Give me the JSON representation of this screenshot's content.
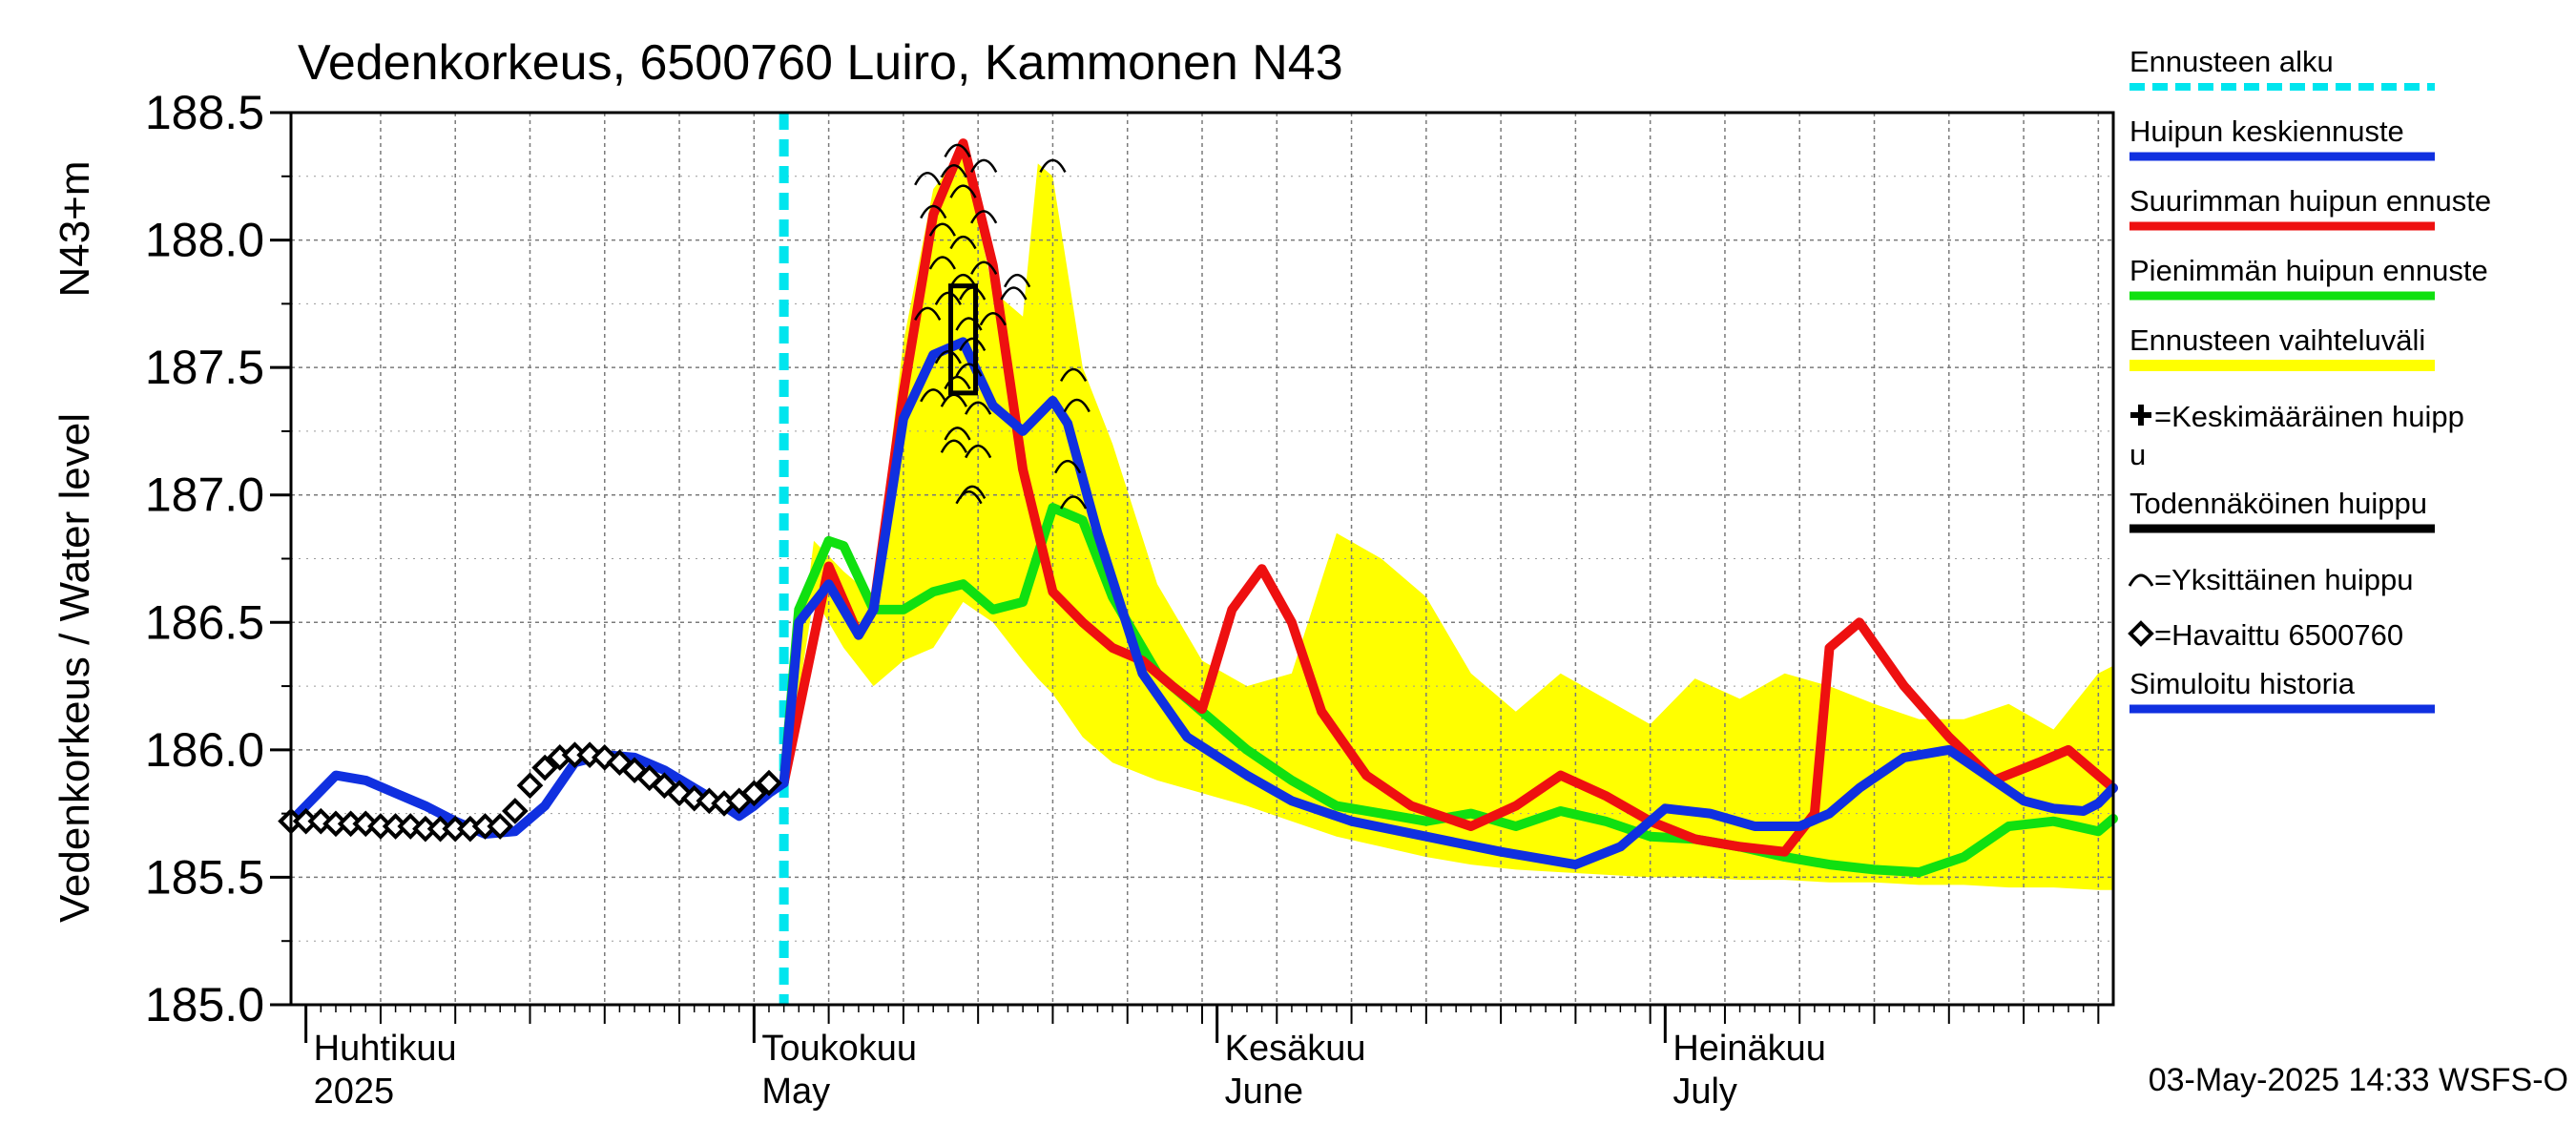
{
  "chart_data": {
    "type": "line",
    "title": "Vedenkorkeus, 6500760 Luiro, Kammonen N43",
    "ylabel": "Vedenkorkeus / Water level",
    "ylabel_unit": "N43+m",
    "ylim": [
      185.0,
      188.5
    ],
    "yticks": [
      "185.0",
      "185.5",
      "186.0",
      "186.5",
      "187.0",
      "187.5",
      "188.0",
      "188.5"
    ],
    "xlim": [
      "2025-03-31",
      "2025-07-31"
    ],
    "grid": true,
    "legend_position": "right",
    "months": [
      {
        "date": "2025-04-01",
        "fi": "Huhtikuu",
        "en": "2025"
      },
      {
        "date": "2025-05-01",
        "fi": "Toukokuu",
        "en": "May"
      },
      {
        "date": "2025-06-01",
        "fi": "Kesäkuu",
        "en": "June"
      },
      {
        "date": "2025-07-01",
        "fi": "Heinäkuu",
        "en": "July"
      }
    ],
    "forecast_start": "2025-05-03",
    "footer": "03-May-2025 14:33 WSFS-O",
    "legend": [
      {
        "key": "forecast_start",
        "label": "Ennusteen alku",
        "color": "#00e5ee",
        "style": "dashed"
      },
      {
        "key": "mean",
        "label": "Huipun keskiennuste",
        "color": "#1030e0",
        "style": "line"
      },
      {
        "key": "max",
        "label": "Suurimman huipun ennuste",
        "color": "#ee1010",
        "style": "line"
      },
      {
        "key": "min",
        "label": "Pienimmän huipun ennuste",
        "color": "#10e010",
        "style": "line"
      },
      {
        "key": "range",
        "label": "Ennusteen vaihteluväli",
        "color": "#ffff00",
        "style": "band"
      },
      {
        "key": "mean_peak",
        "label": "=Keskimääräinen huipp",
        "label2": "u",
        "color": "#000000",
        "style": "plus"
      },
      {
        "key": "likely_peak",
        "label": "Todennäköinen huippu",
        "color": "#000000",
        "style": "line"
      },
      {
        "key": "single_peak",
        "label": "=Yksittäinen huippu",
        "color": "#000000",
        "style": "arc"
      },
      {
        "key": "observed",
        "label": "=Havaittu 6500760",
        "color": "#000000",
        "style": "diamond"
      },
      {
        "key": "simulated",
        "label": "Simuloitu historia",
        "color": "#1030e0",
        "style": "line"
      }
    ],
    "series": [
      {
        "name": "Ennusteen vaihteluväli",
        "type": "band",
        "x": [
          "2025-05-03",
          "2025-05-05",
          "2025-05-07",
          "2025-05-09",
          "2025-05-11",
          "2025-05-13",
          "2025-05-15",
          "2025-05-17",
          "2025-05-19",
          "2025-05-20",
          "2025-05-21",
          "2025-05-23",
          "2025-05-25",
          "2025-05-28",
          "2025-05-31",
          "2025-06-03",
          "2025-06-06",
          "2025-06-09",
          "2025-06-12",
          "2025-06-15",
          "2025-06-18",
          "2025-06-21",
          "2025-06-24",
          "2025-06-27",
          "2025-06-30",
          "2025-07-03",
          "2025-07-06",
          "2025-07-09",
          "2025-07-12",
          "2025-07-15",
          "2025-07-18",
          "2025-07-21",
          "2025-07-24",
          "2025-07-27",
          "2025-07-30",
          "2025-07-31"
        ],
        "upper": [
          185.87,
          186.82,
          186.7,
          186.6,
          187.6,
          188.2,
          188.35,
          187.8,
          187.7,
          188.3,
          188.25,
          187.5,
          187.2,
          186.65,
          186.35,
          186.25,
          186.3,
          186.85,
          186.75,
          186.6,
          186.3,
          186.15,
          186.3,
          186.2,
          186.1,
          186.28,
          186.2,
          186.3,
          186.25,
          186.18,
          186.12,
          186.12,
          186.18,
          186.08,
          186.3,
          186.33
        ],
        "lower": [
          185.85,
          186.6,
          186.4,
          186.25,
          186.35,
          186.4,
          186.58,
          186.5,
          186.35,
          186.28,
          186.22,
          186.05,
          185.95,
          185.88,
          185.83,
          185.78,
          185.72,
          185.66,
          185.62,
          185.58,
          185.55,
          185.53,
          185.52,
          185.51,
          185.5,
          185.5,
          185.49,
          185.49,
          185.48,
          185.48,
          185.47,
          185.47,
          185.46,
          185.46,
          185.45,
          185.45
        ]
      },
      {
        "name": "Huipun keskiennuste",
        "type": "line",
        "color": "#1030e0",
        "x": [
          "2025-05-03",
          "2025-05-04",
          "2025-05-06",
          "2025-05-08",
          "2025-05-09",
          "2025-05-11",
          "2025-05-13",
          "2025-05-15",
          "2025-05-17",
          "2025-05-19",
          "2025-05-21",
          "2025-05-22",
          "2025-05-24",
          "2025-05-27",
          "2025-05-30",
          "2025-06-03",
          "2025-06-06",
          "2025-06-10",
          "2025-06-15",
          "2025-06-20",
          "2025-06-25",
          "2025-06-28",
          "2025-07-01",
          "2025-07-04",
          "2025-07-07",
          "2025-07-10",
          "2025-07-12",
          "2025-07-14",
          "2025-07-17",
          "2025-07-20",
          "2025-07-23",
          "2025-07-25",
          "2025-07-27",
          "2025-07-29",
          "2025-07-30",
          "2025-07-31"
        ],
        "y": [
          185.87,
          186.5,
          186.65,
          186.45,
          186.55,
          187.3,
          187.55,
          187.6,
          187.35,
          187.25,
          187.37,
          187.28,
          186.85,
          186.3,
          186.05,
          185.9,
          185.8,
          185.72,
          185.66,
          185.6,
          185.55,
          185.62,
          185.77,
          185.75,
          185.7,
          185.7,
          185.75,
          185.85,
          185.97,
          186.0,
          185.88,
          185.8,
          185.77,
          185.76,
          185.79,
          185.85
        ]
      },
      {
        "name": "Suurimman huipun ennuste",
        "type": "line",
        "color": "#ee1010",
        "x": [
          "2025-05-03",
          "2025-05-06",
          "2025-05-08",
          "2025-05-09",
          "2025-05-11",
          "2025-05-13",
          "2025-05-15",
          "2025-05-17",
          "2025-05-19",
          "2025-05-21",
          "2025-05-23",
          "2025-05-25",
          "2025-05-27",
          "2025-05-29",
          "2025-05-31",
          "2025-06-02",
          "2025-06-04",
          "2025-06-06",
          "2025-06-08",
          "2025-06-11",
          "2025-06-14",
          "2025-06-18",
          "2025-06-21",
          "2025-06-24",
          "2025-06-27",
          "2025-06-30",
          "2025-07-03",
          "2025-07-06",
          "2025-07-09",
          "2025-07-11",
          "2025-07-12",
          "2025-07-14",
          "2025-07-17",
          "2025-07-20",
          "2025-07-23",
          "2025-07-26",
          "2025-07-28",
          "2025-07-31"
        ],
        "y": [
          185.87,
          186.72,
          186.45,
          186.55,
          187.4,
          188.1,
          188.38,
          187.9,
          187.1,
          186.62,
          186.5,
          186.4,
          186.35,
          186.25,
          186.16,
          186.55,
          186.71,
          186.5,
          186.15,
          185.9,
          185.78,
          185.7,
          185.78,
          185.9,
          185.82,
          185.72,
          185.65,
          185.62,
          185.6,
          185.75,
          186.4,
          186.5,
          186.25,
          186.05,
          185.88,
          185.95,
          186.0,
          185.85
        ]
      },
      {
        "name": "Pienimmän huipun ennuste",
        "type": "line",
        "color": "#10e010",
        "x": [
          "2025-05-03",
          "2025-05-04",
          "2025-05-06",
          "2025-05-07",
          "2025-05-09",
          "2025-05-11",
          "2025-05-13",
          "2025-05-15",
          "2025-05-17",
          "2025-05-19",
          "2025-05-21",
          "2025-05-23",
          "2025-05-25",
          "2025-05-28",
          "2025-05-31",
          "2025-06-03",
          "2025-06-06",
          "2025-06-09",
          "2025-06-12",
          "2025-06-15",
          "2025-06-18",
          "2025-06-21",
          "2025-06-24",
          "2025-06-27",
          "2025-06-30",
          "2025-07-03",
          "2025-07-06",
          "2025-07-09",
          "2025-07-12",
          "2025-07-15",
          "2025-07-18",
          "2025-07-21",
          "2025-07-24",
          "2025-07-27",
          "2025-07-30",
          "2025-07-31"
        ],
        "y": [
          185.87,
          186.55,
          186.82,
          186.8,
          186.55,
          186.55,
          186.62,
          186.65,
          186.55,
          186.58,
          186.95,
          186.9,
          186.6,
          186.3,
          186.15,
          186.0,
          185.88,
          185.78,
          185.75,
          185.72,
          185.75,
          185.7,
          185.76,
          185.72,
          185.66,
          185.65,
          185.62,
          185.58,
          185.55,
          185.53,
          185.52,
          185.58,
          185.7,
          185.72,
          185.68,
          185.73
        ]
      },
      {
        "name": "Simuloitu historia",
        "type": "line",
        "color": "#1030e0",
        "x": [
          "2025-03-31",
          "2025-04-01",
          "2025-04-03",
          "2025-04-05",
          "2025-04-07",
          "2025-04-09",
          "2025-04-11",
          "2025-04-13",
          "2025-04-15",
          "2025-04-17",
          "2025-04-19",
          "2025-04-21",
          "2025-04-23",
          "2025-04-25",
          "2025-04-27",
          "2025-04-29",
          "2025-04-30",
          "2025-05-01",
          "2025-05-02",
          "2025-05-03"
        ],
        "y": [
          185.72,
          185.78,
          185.9,
          185.88,
          185.83,
          185.78,
          185.72,
          185.67,
          185.68,
          185.78,
          185.95,
          185.98,
          185.97,
          185.92,
          185.85,
          185.78,
          185.74,
          185.78,
          185.83,
          185.87
        ]
      },
      {
        "name": "Havaittu 6500760",
        "type": "scatter",
        "marker": "diamond",
        "color": "#000000",
        "x": [
          "2025-03-31",
          "2025-04-01",
          "2025-04-02",
          "2025-04-03",
          "2025-04-04",
          "2025-04-05",
          "2025-04-06",
          "2025-04-07",
          "2025-04-08",
          "2025-04-09",
          "2025-04-10",
          "2025-04-11",
          "2025-04-12",
          "2025-04-13",
          "2025-04-14",
          "2025-04-15",
          "2025-04-16",
          "2025-04-17",
          "2025-04-18",
          "2025-04-19",
          "2025-04-20",
          "2025-04-21",
          "2025-04-22",
          "2025-04-23",
          "2025-04-24",
          "2025-04-25",
          "2025-04-26",
          "2025-04-27",
          "2025-04-28",
          "2025-04-29",
          "2025-04-30",
          "2025-05-01",
          "2025-05-02"
        ],
        "y": [
          185.72,
          185.72,
          185.72,
          185.71,
          185.71,
          185.71,
          185.7,
          185.7,
          185.7,
          185.69,
          185.69,
          185.69,
          185.69,
          185.7,
          185.7,
          185.76,
          185.86,
          185.93,
          185.97,
          185.98,
          185.98,
          185.97,
          185.95,
          185.92,
          185.89,
          185.86,
          185.83,
          185.81,
          185.8,
          185.79,
          185.8,
          185.83,
          185.87
        ]
      },
      {
        "name": "Yksittäinen huippu",
        "type": "scatter",
        "marker": "arc",
        "color": "#000000",
        "x": [
          "2025-05-13",
          "2025-05-13",
          "2025-05-14",
          "2025-05-15",
          "2025-05-15",
          "2025-05-16",
          "2025-05-14",
          "2025-05-15",
          "2025-05-16",
          "2025-05-14",
          "2025-05-15",
          "2025-05-16",
          "2025-05-13",
          "2025-05-14",
          "2025-05-15",
          "2025-05-16",
          "2025-05-14",
          "2025-05-15",
          "2025-05-16",
          "2025-05-13",
          "2025-05-14",
          "2025-05-15",
          "2025-05-16",
          "2025-05-14",
          "2025-05-15",
          "2025-05-16",
          "2025-05-15",
          "2025-05-16",
          "2025-05-17",
          "2025-05-18",
          "2025-05-19",
          "2025-05-21",
          "2025-05-22",
          "2025-05-23",
          "2025-05-22",
          "2025-05-22"
        ],
        "y": [
          188.25,
          188.12,
          188.28,
          188.36,
          188.2,
          188.3,
          188.05,
          188.0,
          188.1,
          187.92,
          187.85,
          187.9,
          187.72,
          187.78,
          187.68,
          187.8,
          187.55,
          187.5,
          187.6,
          187.4,
          187.38,
          187.45,
          187.35,
          187.2,
          187.25,
          187.18,
          187.0,
          187.02,
          187.7,
          187.8,
          187.85,
          188.3,
          187.48,
          187.36,
          187.12,
          186.98
        ]
      }
    ],
    "likely_peak": {
      "x": "2025-05-15",
      "y_from": 187.4,
      "y_to": 187.82
    }
  }
}
